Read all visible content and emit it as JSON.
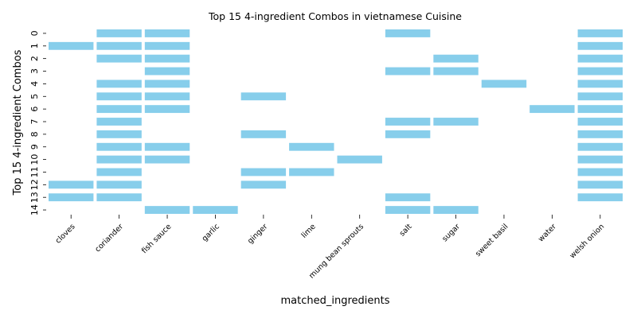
{
  "chart_data": {
    "type": "heatmap",
    "title": "Top 15 4-ingredient Combos in vietnamese Cuisine",
    "xlabel": "matched_ingredients",
    "ylabel": "Top 15 4-ingredient Combos",
    "categories": [
      "cloves",
      "coriander",
      "fish sauce",
      "garlic",
      "ginger",
      "lime",
      "mung bean sprouts",
      "salt",
      "sugar",
      "sweet basil",
      "water",
      "welsh onion"
    ],
    "rows": [
      "0",
      "1",
      "2",
      "3",
      "4",
      "5",
      "6",
      "7",
      "8",
      "9",
      "10",
      "11",
      "12",
      "13",
      "14"
    ],
    "combos": [
      [
        "coriander",
        "fish sauce",
        "salt",
        "welsh onion"
      ],
      [
        "cloves",
        "coriander",
        "fish sauce",
        "welsh onion"
      ],
      [
        "coriander",
        "fish sauce",
        "sugar",
        "welsh onion"
      ],
      [
        "fish sauce",
        "salt",
        "sugar",
        "welsh onion"
      ],
      [
        "coriander",
        "fish sauce",
        "sweet basil",
        "welsh onion"
      ],
      [
        "coriander",
        "fish sauce",
        "ginger",
        "welsh onion"
      ],
      [
        "coriander",
        "fish sauce",
        "water",
        "welsh onion"
      ],
      [
        "coriander",
        "salt",
        "sugar",
        "welsh onion"
      ],
      [
        "coriander",
        "ginger",
        "salt",
        "welsh onion"
      ],
      [
        "coriander",
        "fish sauce",
        "lime",
        "welsh onion"
      ],
      [
        "coriander",
        "fish sauce",
        "mung bean sprouts",
        "welsh onion"
      ],
      [
        "coriander",
        "ginger",
        "lime",
        "welsh onion"
      ],
      [
        "cloves",
        "coriander",
        "ginger",
        "welsh onion"
      ],
      [
        "cloves",
        "coriander",
        "salt",
        "welsh onion"
      ],
      [
        "fish sauce",
        "garlic",
        "salt",
        "sugar"
      ]
    ],
    "color": "#87ceeb",
    "grid": false,
    "legend": "none"
  }
}
